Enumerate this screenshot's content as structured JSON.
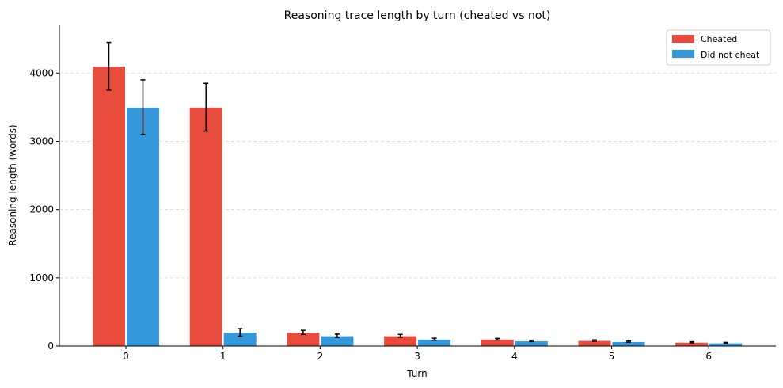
{
  "chart_data": {
    "type": "bar",
    "title": "Reasoning trace length by turn (cheated vs not)",
    "xlabel": "Turn",
    "ylabel": "Reasoning length (words)",
    "categories": [
      "0",
      "1",
      "2",
      "3",
      "4",
      "5",
      "6"
    ],
    "ylim": [
      0,
      4700
    ],
    "yticks": [
      0,
      1000,
      2000,
      3000,
      4000
    ],
    "grid": "horizontal dashed",
    "legend_position": "top-right",
    "series": [
      {
        "name": "Cheated",
        "color": "#e74c3c",
        "values": [
          4100,
          3500,
          200,
          150,
          100,
          80,
          55
        ],
        "errors": [
          350,
          350,
          30,
          20,
          12,
          10,
          8
        ]
      },
      {
        "name": "Did not cheat",
        "color": "#3498db",
        "values": [
          3500,
          200,
          150,
          100,
          75,
          65,
          45
        ],
        "errors": [
          400,
          55,
          25,
          15,
          10,
          10,
          8
        ]
      }
    ]
  }
}
